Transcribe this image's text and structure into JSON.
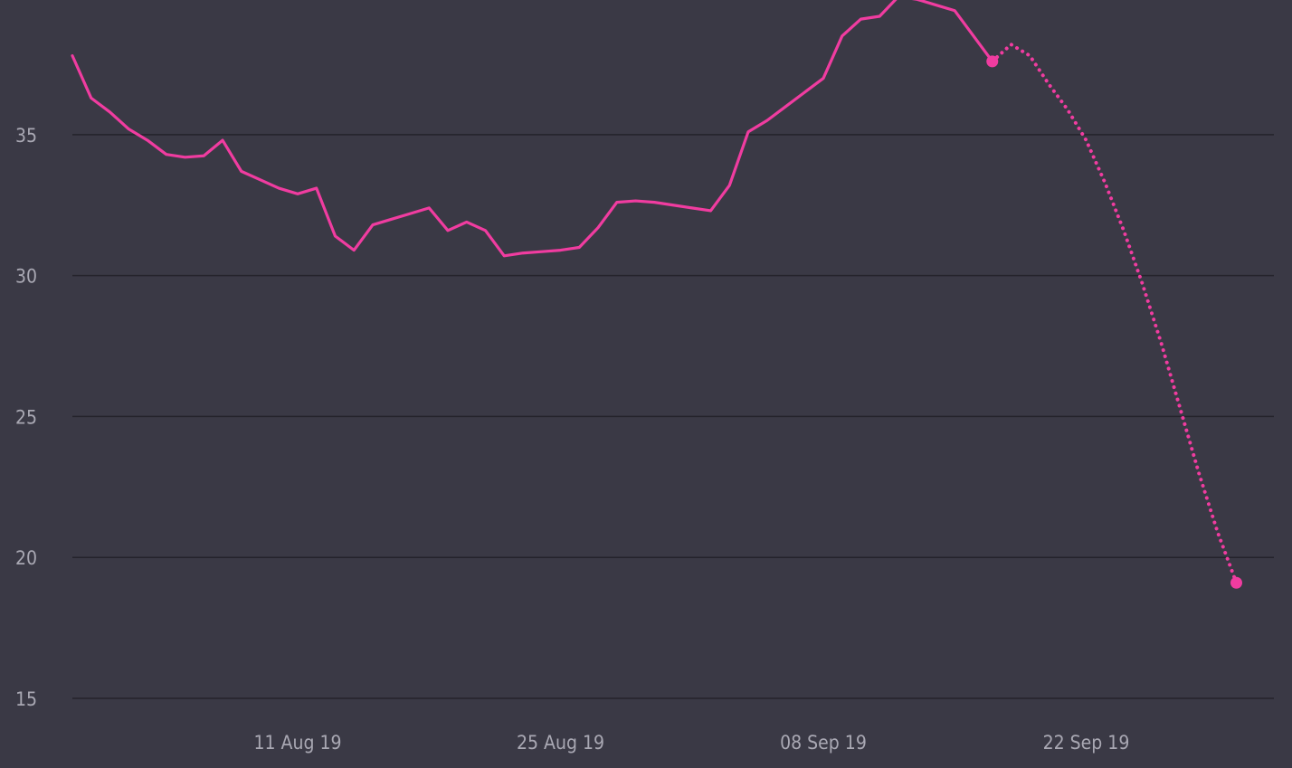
{
  "colors": {
    "background": "#3a3945",
    "line": "#f03ca0",
    "grid": "#24232b",
    "tick_text": "#a9a8b3"
  },
  "chart_data": {
    "type": "line",
    "title": "",
    "xlabel": "",
    "ylabel": "",
    "ylim": [
      15,
      39.2
    ],
    "xlim": [
      "2019-07-30",
      "2019-10-02"
    ],
    "grid": true,
    "yticks": [
      15,
      20,
      25,
      30,
      35
    ],
    "xticks": [
      {
        "date": "2019-08-11",
        "label": "11 Aug 19"
      },
      {
        "date": "2019-08-25",
        "label": "25 Aug 19"
      },
      {
        "date": "2019-09-08",
        "label": "08 Sep 19"
      },
      {
        "date": "2019-09-22",
        "label": "22 Sep 19"
      }
    ],
    "series": [
      {
        "style": "solid",
        "end_marker": true,
        "points": [
          [
            "2019-07-30",
            37.8
          ],
          [
            "2019-07-31",
            36.3
          ],
          [
            "2019-08-01",
            35.8
          ],
          [
            "2019-08-02",
            35.2
          ],
          [
            "2019-08-03",
            34.8
          ],
          [
            "2019-08-04",
            34.3
          ],
          [
            "2019-08-05",
            34.2
          ],
          [
            "2019-08-06",
            34.25
          ],
          [
            "2019-08-07",
            34.8
          ],
          [
            "2019-08-08",
            33.7
          ],
          [
            "2019-08-09",
            33.4
          ],
          [
            "2019-08-10",
            33.1
          ],
          [
            "2019-08-11",
            32.9
          ],
          [
            "2019-08-12",
            33.1
          ],
          [
            "2019-08-13",
            31.4
          ],
          [
            "2019-08-14",
            30.9
          ],
          [
            "2019-08-15",
            31.8
          ],
          [
            "2019-08-16",
            32.0
          ],
          [
            "2019-08-17",
            32.2
          ],
          [
            "2019-08-18",
            32.4
          ],
          [
            "2019-08-19",
            31.6
          ],
          [
            "2019-08-20",
            31.9
          ],
          [
            "2019-08-21",
            31.6
          ],
          [
            "2019-08-22",
            30.7
          ],
          [
            "2019-08-23",
            30.8
          ],
          [
            "2019-08-24",
            30.85
          ],
          [
            "2019-08-25",
            30.9
          ],
          [
            "2019-08-26",
            31.0
          ],
          [
            "2019-08-27",
            31.7
          ],
          [
            "2019-08-28",
            32.6
          ],
          [
            "2019-08-29",
            32.65
          ],
          [
            "2019-08-30",
            32.6
          ],
          [
            "2019-08-31",
            32.5
          ],
          [
            "2019-09-01",
            32.4
          ],
          [
            "2019-09-02",
            32.3
          ],
          [
            "2019-09-03",
            33.2
          ],
          [
            "2019-09-04",
            35.1
          ],
          [
            "2019-09-05",
            35.5
          ],
          [
            "2019-09-06",
            36.0
          ],
          [
            "2019-09-07",
            36.5
          ],
          [
            "2019-09-08",
            37.0
          ],
          [
            "2019-09-09",
            38.5
          ],
          [
            "2019-09-10",
            39.1
          ],
          [
            "2019-09-11",
            39.2
          ],
          [
            "2019-09-12",
            39.9
          ],
          [
            "2019-09-13",
            39.8
          ],
          [
            "2019-09-14",
            39.6
          ],
          [
            "2019-09-15",
            39.4
          ],
          [
            "2019-09-16",
            38.5
          ],
          [
            "2019-09-17",
            37.6
          ]
        ]
      },
      {
        "style": "dotted",
        "end_marker": true,
        "points": [
          [
            "2019-09-17",
            37.6
          ],
          [
            "2019-09-18",
            38.2
          ],
          [
            "2019-09-19",
            37.8
          ],
          [
            "2019-09-20",
            36.8
          ],
          [
            "2019-09-21",
            35.9
          ],
          [
            "2019-09-22",
            34.8
          ],
          [
            "2019-09-23",
            33.3
          ],
          [
            "2019-09-24",
            31.6
          ],
          [
            "2019-09-25",
            29.7
          ],
          [
            "2019-09-26",
            27.6
          ],
          [
            "2019-09-27",
            25.3
          ],
          [
            "2019-09-28",
            23.0
          ],
          [
            "2019-09-29",
            20.9
          ],
          [
            "2019-09-30",
            19.1
          ]
        ]
      }
    ]
  }
}
